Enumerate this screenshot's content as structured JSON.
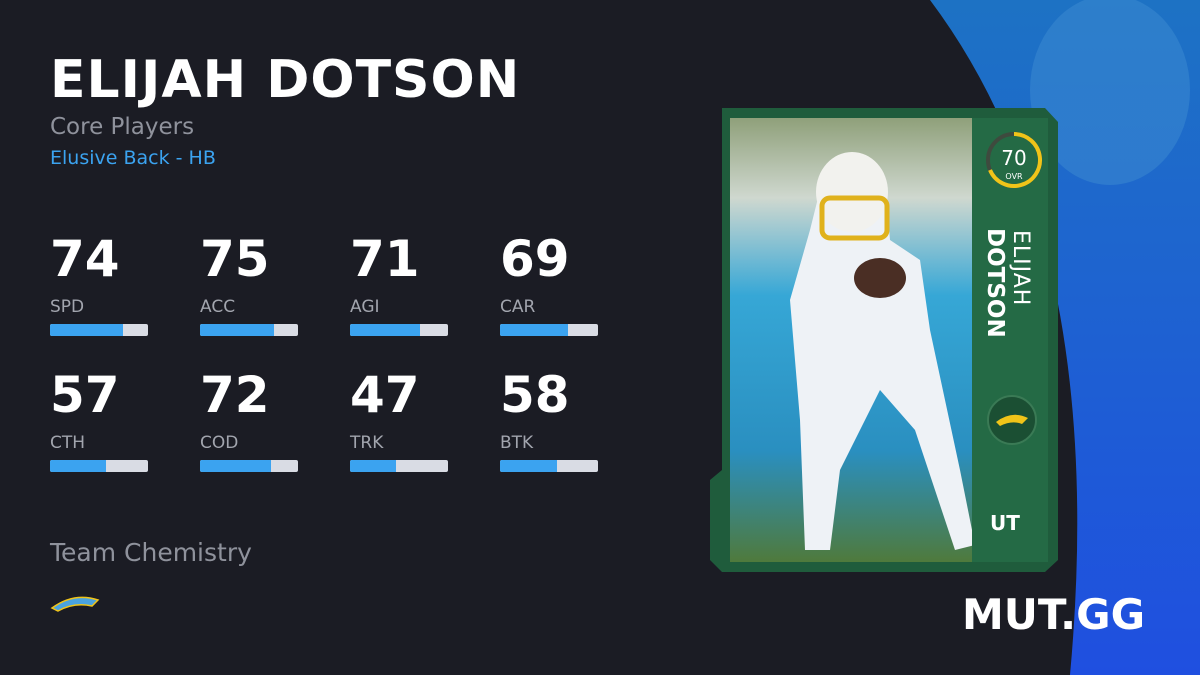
{
  "header": {
    "name": "ELIJAH DOTSON",
    "program": "Core Players",
    "archetype": "Elusive Back - HB"
  },
  "stats": [
    {
      "value": 74,
      "label": "SPD"
    },
    {
      "value": 75,
      "label": "ACC"
    },
    {
      "value": 71,
      "label": "AGI"
    },
    {
      "value": 69,
      "label": "CAR"
    },
    {
      "value": 57,
      "label": "CTH"
    },
    {
      "value": 72,
      "label": "COD"
    },
    {
      "value": 47,
      "label": "TRK"
    },
    {
      "value": 58,
      "label": "BTK"
    }
  ],
  "team_chemistry": {
    "title": "Team Chemistry"
  },
  "card": {
    "ovr": 70,
    "ovr_label": "OVR",
    "first_name": "ELIJAH",
    "last_name": "DOTSON",
    "badge": "UT"
  },
  "brand": "MUT.GG"
}
